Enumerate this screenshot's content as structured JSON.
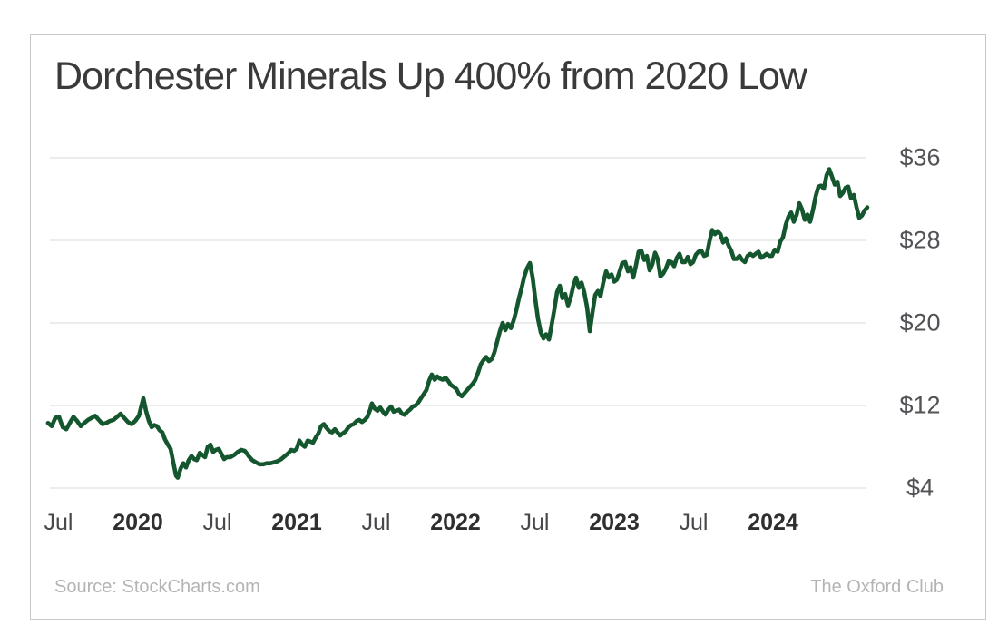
{
  "footer": {
    "source": "Source: StockCharts.com",
    "brand": "The Oxford Club"
  },
  "chart_data": {
    "type": "line",
    "title": "Dorchester Minerals Up 400% from 2020 Low",
    "series_name": "Dorchester Minerals share price (USD)",
    "line_color": "#14562d",
    "grid_color": "#d8d8d8",
    "legend": "none",
    "grid": true,
    "xlabel": "",
    "ylabel": "",
    "x_axis": {
      "unit": "decimal year",
      "range": [
        2019.42,
        2024.62
      ],
      "ticks": [
        {
          "label": "Jul",
          "t": 2019.5,
          "bold": false
        },
        {
          "label": "2020",
          "t": 2020.0,
          "bold": true
        },
        {
          "label": "Jul",
          "t": 2020.5,
          "bold": false
        },
        {
          "label": "2021",
          "t": 2021.0,
          "bold": true
        },
        {
          "label": "Jul",
          "t": 2021.5,
          "bold": false
        },
        {
          "label": "2022",
          "t": 2022.0,
          "bold": true
        },
        {
          "label": "Jul",
          "t": 2022.5,
          "bold": false
        },
        {
          "label": "2023",
          "t": 2023.0,
          "bold": true
        },
        {
          "label": "Jul",
          "t": 2023.5,
          "bold": false
        },
        {
          "label": "2024",
          "t": 2024.0,
          "bold": true
        }
      ]
    },
    "y_axis": {
      "unit": "USD",
      "ylim": [
        2,
        38
      ],
      "ticks": [
        {
          "label": "$36",
          "value": 36
        },
        {
          "label": "$28",
          "value": 28
        },
        {
          "label": "$20",
          "value": 20
        },
        {
          "label": "$12",
          "value": 12
        },
        {
          "label": "$4",
          "value": 4
        }
      ]
    },
    "points": [
      [
        2019.434,
        10.3
      ],
      [
        2019.457,
        10.0
      ],
      [
        2019.48,
        10.8
      ],
      [
        2019.503,
        10.9
      ],
      [
        2019.526,
        9.9
      ],
      [
        2019.549,
        9.7
      ],
      [
        2019.571,
        10.3
      ],
      [
        2019.594,
        10.9
      ],
      [
        2019.617,
        10.5
      ],
      [
        2019.64,
        10.0
      ],
      [
        2019.663,
        10.3
      ],
      [
        2019.686,
        10.6
      ],
      [
        2019.709,
        10.8
      ],
      [
        2019.731,
        11.0
      ],
      [
        2019.754,
        10.6
      ],
      [
        2019.777,
        10.2
      ],
      [
        2019.8,
        10.3
      ],
      [
        2019.823,
        10.5
      ],
      [
        2019.846,
        10.6
      ],
      [
        2019.869,
        10.9
      ],
      [
        2019.891,
        11.2
      ],
      [
        2019.914,
        10.8
      ],
      [
        2019.937,
        10.4
      ],
      [
        2019.96,
        10.2
      ],
      [
        2019.983,
        10.5
      ],
      [
        2020.006,
        11.0
      ],
      [
        2020.023,
        12.0
      ],
      [
        2020.034,
        12.7
      ],
      [
        2020.051,
        11.5
      ],
      [
        2020.069,
        10.5
      ],
      [
        2020.086,
        9.9
      ],
      [
        2020.103,
        10.1
      ],
      [
        2020.12,
        10.0
      ],
      [
        2020.137,
        9.6
      ],
      [
        2020.154,
        9.4
      ],
      [
        2020.171,
        8.7
      ],
      [
        2020.189,
        8.2
      ],
      [
        2020.206,
        7.8
      ],
      [
        2020.223,
        6.5
      ],
      [
        2020.24,
        5.2
      ],
      [
        2020.251,
        5.0
      ],
      [
        2020.269,
        5.9
      ],
      [
        2020.286,
        6.4
      ],
      [
        2020.303,
        6.0
      ],
      [
        2020.32,
        6.7
      ],
      [
        2020.337,
        7.1
      ],
      [
        2020.354,
        6.8
      ],
      [
        2020.371,
        6.7
      ],
      [
        2020.389,
        7.4
      ],
      [
        2020.406,
        7.2
      ],
      [
        2020.423,
        7.0
      ],
      [
        2020.44,
        8.0
      ],
      [
        2020.457,
        8.2
      ],
      [
        2020.474,
        7.5
      ],
      [
        2020.491,
        7.7
      ],
      [
        2020.509,
        7.8
      ],
      [
        2020.526,
        7.3
      ],
      [
        2020.543,
        6.8
      ],
      [
        2020.56,
        7.0
      ],
      [
        2020.583,
        7.0
      ],
      [
        2020.606,
        7.2
      ],
      [
        2020.629,
        7.5
      ],
      [
        2020.651,
        7.7
      ],
      [
        2020.674,
        7.6
      ],
      [
        2020.697,
        7.1
      ],
      [
        2020.72,
        6.7
      ],
      [
        2020.743,
        6.5
      ],
      [
        2020.766,
        6.3
      ],
      [
        2020.789,
        6.3
      ],
      [
        2020.811,
        6.4
      ],
      [
        2020.834,
        6.4
      ],
      [
        2020.857,
        6.5
      ],
      [
        2020.88,
        6.6
      ],
      [
        2020.903,
        6.8
      ],
      [
        2020.926,
        7.1
      ],
      [
        2020.949,
        7.4
      ],
      [
        2020.966,
        7.7
      ],
      [
        2020.983,
        7.6
      ],
      [
        2021.0,
        7.8
      ],
      [
        2021.017,
        8.6
      ],
      [
        2021.034,
        8.2
      ],
      [
        2021.051,
        8.0
      ],
      [
        2021.069,
        8.6
      ],
      [
        2021.086,
        8.5
      ],
      [
        2021.103,
        8.4
      ],
      [
        2021.12,
        8.9
      ],
      [
        2021.137,
        9.3
      ],
      [
        2021.154,
        10.0
      ],
      [
        2021.171,
        10.2
      ],
      [
        2021.189,
        9.8
      ],
      [
        2021.206,
        9.5
      ],
      [
        2021.223,
        9.4
      ],
      [
        2021.24,
        9.7
      ],
      [
        2021.257,
        9.4
      ],
      [
        2021.274,
        9.1
      ],
      [
        2021.291,
        9.3
      ],
      [
        2021.309,
        9.5
      ],
      [
        2021.326,
        9.9
      ],
      [
        2021.343,
        10.1
      ],
      [
        2021.36,
        10.2
      ],
      [
        2021.377,
        10.5
      ],
      [
        2021.394,
        10.6
      ],
      [
        2021.411,
        10.4
      ],
      [
        2021.429,
        10.6
      ],
      [
        2021.446,
        10.9
      ],
      [
        2021.463,
        11.6
      ],
      [
        2021.474,
        12.2
      ],
      [
        2021.491,
        11.7
      ],
      [
        2021.509,
        11.5
      ],
      [
        2021.526,
        11.8
      ],
      [
        2021.543,
        11.4
      ],
      [
        2021.56,
        11.1
      ],
      [
        2021.577,
        11.6
      ],
      [
        2021.594,
        11.9
      ],
      [
        2021.611,
        11.4
      ],
      [
        2021.629,
        11.5
      ],
      [
        2021.646,
        11.6
      ],
      [
        2021.663,
        11.2
      ],
      [
        2021.68,
        11.1
      ],
      [
        2021.697,
        11.4
      ],
      [
        2021.714,
        11.6
      ],
      [
        2021.731,
        11.9
      ],
      [
        2021.749,
        12.0
      ],
      [
        2021.766,
        12.3
      ],
      [
        2021.783,
        12.7
      ],
      [
        2021.8,
        13.1
      ],
      [
        2021.817,
        13.5
      ],
      [
        2021.834,
        14.4
      ],
      [
        2021.851,
        15.0
      ],
      [
        2021.869,
        14.5
      ],
      [
        2021.886,
        14.8
      ],
      [
        2021.903,
        14.6
      ],
      [
        2021.92,
        14.5
      ],
      [
        2021.937,
        14.7
      ],
      [
        2021.954,
        14.4
      ],
      [
        2021.971,
        14.0
      ],
      [
        2021.989,
        13.8
      ],
      [
        2022.006,
        13.6
      ],
      [
        2022.023,
        13.1
      ],
      [
        2022.04,
        12.9
      ],
      [
        2022.057,
        13.2
      ],
      [
        2022.074,
        13.5
      ],
      [
        2022.091,
        13.8
      ],
      [
        2022.109,
        14.1
      ],
      [
        2022.126,
        14.5
      ],
      [
        2022.143,
        15.2
      ],
      [
        2022.16,
        16.0
      ],
      [
        2022.177,
        16.4
      ],
      [
        2022.194,
        16.7
      ],
      [
        2022.211,
        16.3
      ],
      [
        2022.229,
        16.5
      ],
      [
        2022.246,
        17.2
      ],
      [
        2022.263,
        18.2
      ],
      [
        2022.28,
        19.2
      ],
      [
        2022.297,
        20.0
      ],
      [
        2022.314,
        19.3
      ],
      [
        2022.331,
        19.9
      ],
      [
        2022.349,
        19.5
      ],
      [
        2022.366,
        20.2
      ],
      [
        2022.383,
        21.2
      ],
      [
        2022.4,
        22.4
      ],
      [
        2022.417,
        23.4
      ],
      [
        2022.434,
        24.5
      ],
      [
        2022.451,
        25.3
      ],
      [
        2022.469,
        25.8
      ],
      [
        2022.486,
        24.4
      ],
      [
        2022.503,
        22.3
      ],
      [
        2022.52,
        20.4
      ],
      [
        2022.537,
        19.1
      ],
      [
        2022.554,
        18.5
      ],
      [
        2022.571,
        18.9
      ],
      [
        2022.589,
        18.4
      ],
      [
        2022.606,
        19.8
      ],
      [
        2022.623,
        21.3
      ],
      [
        2022.64,
        23.0
      ],
      [
        2022.657,
        23.6
      ],
      [
        2022.674,
        22.4
      ],
      [
        2022.691,
        22.8
      ],
      [
        2022.709,
        21.7
      ],
      [
        2022.726,
        22.5
      ],
      [
        2022.743,
        23.6
      ],
      [
        2022.76,
        24.4
      ],
      [
        2022.777,
        23.4
      ],
      [
        2022.794,
        23.9
      ],
      [
        2022.811,
        23.0
      ],
      [
        2022.829,
        21.5
      ],
      [
        2022.846,
        19.2
      ],
      [
        2022.863,
        21.0
      ],
      [
        2022.88,
        22.7
      ],
      [
        2022.897,
        23.1
      ],
      [
        2022.914,
        22.6
      ],
      [
        2022.931,
        23.9
      ],
      [
        2022.949,
        25.0
      ],
      [
        2022.966,
        24.4
      ],
      [
        2022.983,
        24.7
      ],
      [
        2023.0,
        24.0
      ],
      [
        2023.017,
        24.2
      ],
      [
        2023.034,
        25.0
      ],
      [
        2023.051,
        25.8
      ],
      [
        2023.069,
        25.9
      ],
      [
        2023.086,
        25.0
      ],
      [
        2023.103,
        25.4
      ],
      [
        2023.12,
        24.4
      ],
      [
        2023.137,
        25.6
      ],
      [
        2023.154,
        26.9
      ],
      [
        2023.171,
        27.0
      ],
      [
        2023.189,
        26.1
      ],
      [
        2023.206,
        26.5
      ],
      [
        2023.223,
        25.1
      ],
      [
        2023.24,
        25.7
      ],
      [
        2023.257,
        26.8
      ],
      [
        2023.274,
        26.2
      ],
      [
        2023.291,
        24.5
      ],
      [
        2023.309,
        24.8
      ],
      [
        2023.326,
        25.3
      ],
      [
        2023.343,
        26.0
      ],
      [
        2023.36,
        25.9
      ],
      [
        2023.377,
        25.5
      ],
      [
        2023.394,
        26.3
      ],
      [
        2023.411,
        26.7
      ],
      [
        2023.429,
        25.9
      ],
      [
        2023.446,
        25.9
      ],
      [
        2023.463,
        26.4
      ],
      [
        2023.48,
        25.7
      ],
      [
        2023.497,
        25.9
      ],
      [
        2023.514,
        26.6
      ],
      [
        2023.531,
        26.9
      ],
      [
        2023.549,
        27.0
      ],
      [
        2023.566,
        26.5
      ],
      [
        2023.583,
        26.6
      ],
      [
        2023.6,
        27.9
      ],
      [
        2023.617,
        29.0
      ],
      [
        2023.634,
        28.6
      ],
      [
        2023.651,
        28.9
      ],
      [
        2023.669,
        28.6
      ],
      [
        2023.686,
        27.8
      ],
      [
        2023.703,
        28.2
      ],
      [
        2023.72,
        27.5
      ],
      [
        2023.737,
        27.0
      ],
      [
        2023.754,
        26.2
      ],
      [
        2023.771,
        26.2
      ],
      [
        2023.789,
        26.5
      ],
      [
        2023.806,
        26.1
      ],
      [
        2023.823,
        25.9
      ],
      [
        2023.84,
        26.5
      ],
      [
        2023.857,
        26.7
      ],
      [
        2023.874,
        26.5
      ],
      [
        2023.891,
        26.7
      ],
      [
        2023.909,
        26.9
      ],
      [
        2023.926,
        26.3
      ],
      [
        2023.943,
        26.5
      ],
      [
        2023.96,
        26.7
      ],
      [
        2023.977,
        26.5
      ],
      [
        2023.994,
        26.5
      ],
      [
        2024.011,
        27.1
      ],
      [
        2024.029,
        26.9
      ],
      [
        2024.046,
        27.9
      ],
      [
        2024.063,
        28.3
      ],
      [
        2024.08,
        29.5
      ],
      [
        2024.097,
        30.3
      ],
      [
        2024.114,
        30.7
      ],
      [
        2024.131,
        29.8
      ],
      [
        2024.149,
        30.5
      ],
      [
        2024.166,
        31.6
      ],
      [
        2024.183,
        31.0
      ],
      [
        2024.2,
        30.0
      ],
      [
        2024.217,
        30.5
      ],
      [
        2024.234,
        29.8
      ],
      [
        2024.251,
        30.9
      ],
      [
        2024.269,
        32.3
      ],
      [
        2024.286,
        33.2
      ],
      [
        2024.303,
        33.3
      ],
      [
        2024.32,
        33.0
      ],
      [
        2024.337,
        34.3
      ],
      [
        2024.354,
        34.9
      ],
      [
        2024.371,
        34.2
      ],
      [
        2024.389,
        33.4
      ],
      [
        2024.406,
        33.7
      ],
      [
        2024.423,
        32.3
      ],
      [
        2024.44,
        32.6
      ],
      [
        2024.457,
        33.1
      ],
      [
        2024.474,
        33.2
      ],
      [
        2024.491,
        32.1
      ],
      [
        2024.509,
        32.4
      ],
      [
        2024.526,
        31.2
      ],
      [
        2024.543,
        30.2
      ],
      [
        2024.56,
        30.4
      ],
      [
        2024.577,
        30.9
      ],
      [
        2024.594,
        31.2
      ]
    ]
  }
}
